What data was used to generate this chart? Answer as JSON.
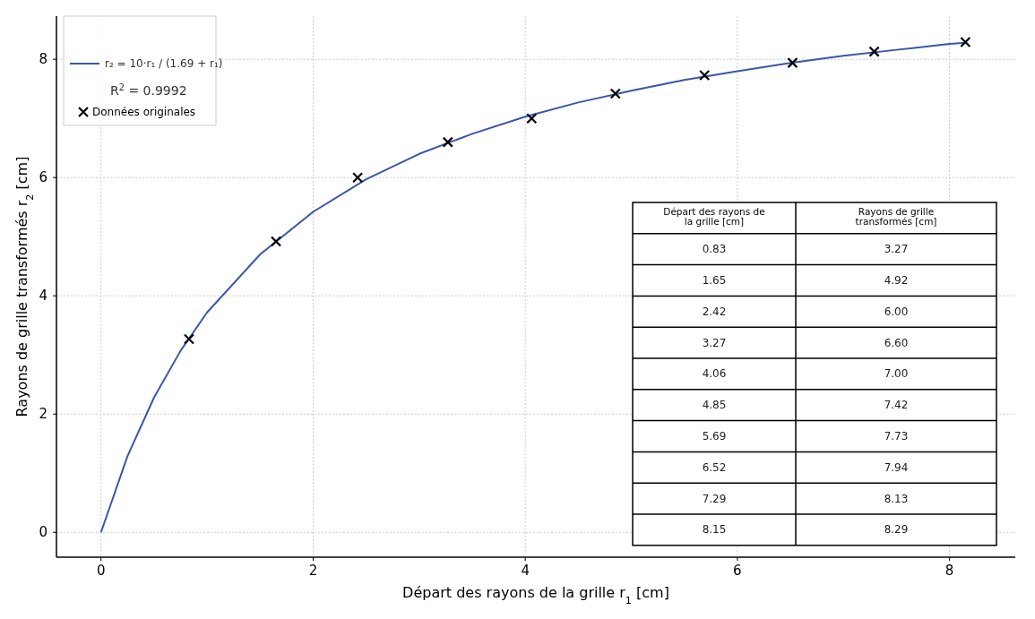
{
  "chart_data": [
    {
      "type": "scatter",
      "xlabel": "Départ des rayons de la grille r$_{1}$ [cm]",
      "ylabel": "Rayons de grille transformés r$_{2}$ [cm]",
      "xlim": [
        -0.42,
        8.62
      ],
      "ylim": [
        -0.42,
        8.73
      ],
      "xticks": [
        0,
        2,
        4,
        6,
        8
      ],
      "yticks": [
        0,
        2,
        4,
        6,
        8
      ],
      "grid": true,
      "legend": "top left",
      "annotations": [
        "R$^{2}$ = 0.9992"
      ],
      "series": [
        {
          "name": "r₂ = 10·r₁ / (1.69 + r₁)",
          "type": "line",
          "marker": "none",
          "color": "#3a56a8",
          "x": [
            0,
            0.25,
            0.5,
            0.75,
            1,
            1.5,
            2,
            2.5,
            3,
            3.5,
            4,
            4.5,
            5,
            5.5,
            6,
            6.5,
            7,
            7.5,
            8,
            8.15
          ],
          "values": [
            0,
            1.29,
            2.28,
            3.07,
            3.72,
            4.7,
            5.42,
            5.97,
            6.4,
            6.74,
            7.03,
            7.27,
            7.47,
            7.65,
            7.8,
            7.94,
            8.06,
            8.16,
            8.26,
            8.28
          ]
        },
        {
          "name": "Données originales",
          "type": "scatter",
          "marker": "cross",
          "color": "#000000",
          "x": [
            0.83,
            1.65,
            2.42,
            3.27,
            4.06,
            4.85,
            5.69,
            6.52,
            7.29,
            8.15
          ],
          "values": [
            3.27,
            4.92,
            6.0,
            6.6,
            7.0,
            7.42,
            7.73,
            7.94,
            8.13,
            8.29
          ]
        }
      ]
    },
    {
      "type": "other",
      "annotations": [
        "Départ des rayons de la grille [cm]",
        "Rayons de grille transformés [cm]",
        "0.83",
        "3.27",
        "1.65",
        "4.92",
        "2.42",
        "6.00",
        "3.27",
        "6.60",
        "4.06",
        "7.00",
        "4.85",
        "7.42",
        "5.69",
        "7.73",
        "6.52",
        "7.94",
        "7.29",
        "8.13",
        "8.15",
        "8.29"
      ]
    }
  ]
}
